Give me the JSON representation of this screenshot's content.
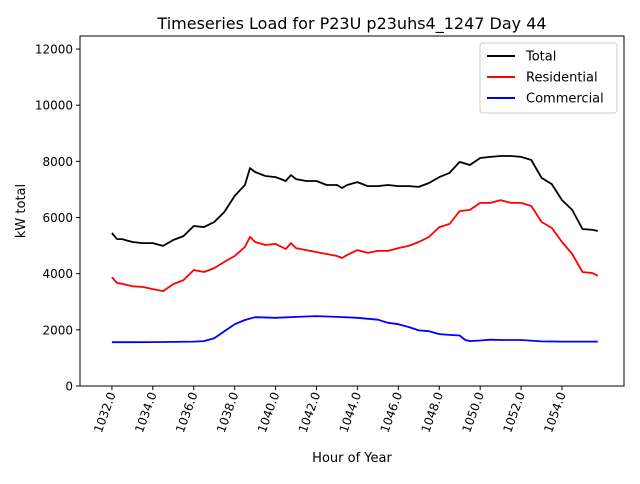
{
  "chart_data": {
    "type": "line",
    "title": "Timeseries Load for P23U p23uhs4_1247  Day 44",
    "xlabel": "Hour of Year",
    "ylabel": "kW total",
    "xlim": [
      1030.44,
      1057.03
    ],
    "ylim": [
      0,
      12465
    ],
    "xticks": [
      1032,
      1034,
      1036,
      1038,
      1040,
      1042,
      1044,
      1046,
      1048,
      1050,
      1052,
      1054
    ],
    "xtick_labels": [
      "1032.0",
      "1034.0",
      "1036.0",
      "1038.0",
      "1040.0",
      "1042.0",
      "1044.0",
      "1046.0",
      "1048.0",
      "1050.0",
      "1052.0",
      "1054.0"
    ],
    "yticks": [
      0,
      2000,
      4000,
      6000,
      8000,
      10000,
      12000
    ],
    "ytick_labels": [
      "0",
      "2000",
      "4000",
      "6000",
      "8000",
      "10000",
      "12000"
    ],
    "grid": false,
    "legend_position": "top-right",
    "series": [
      {
        "name": "Total",
        "color": "#000000",
        "x": [
          1032,
          1032.25,
          1032.5,
          1033,
          1033.5,
          1034,
          1034.5,
          1035,
          1035.5,
          1036,
          1036.5,
          1037,
          1037.5,
          1038,
          1038.5,
          1038.75,
          1039,
          1039.5,
          1040,
          1040.5,
          1040.75,
          1041,
          1041.5,
          1042,
          1042.5,
          1043,
          1043.25,
          1043.5,
          1044,
          1044.5,
          1045,
          1045.5,
          1046,
          1046.5,
          1047,
          1047.5,
          1048,
          1048.5,
          1049,
          1049.5,
          1050,
          1050.5,
          1051,
          1051.5,
          1052,
          1052.5,
          1053,
          1053.5,
          1054,
          1054.5,
          1055,
          1055.5,
          1055.75
        ],
        "y": [
          5450,
          5230,
          5230,
          5130,
          5090,
          5090,
          4990,
          5200,
          5340,
          5700,
          5660,
          5840,
          6200,
          6770,
          7160,
          7760,
          7620,
          7480,
          7440,
          7300,
          7510,
          7370,
          7300,
          7300,
          7160,
          7160,
          7050,
          7160,
          7260,
          7120,
          7120,
          7160,
          7120,
          7120,
          7090,
          7230,
          7440,
          7590,
          7980,
          7870,
          8120,
          8160,
          8190,
          8190,
          8160,
          8050,
          7410,
          7190,
          6620,
          6270,
          5590,
          5560,
          5520
        ]
      },
      {
        "name": "Residential",
        "color": "#ff0000",
        "x": [
          1032,
          1032.25,
          1032.5,
          1033,
          1033.5,
          1034,
          1034.5,
          1035,
          1035.5,
          1036,
          1036.5,
          1037,
          1037.5,
          1038,
          1038.5,
          1038.75,
          1039,
          1039.5,
          1040,
          1040.5,
          1040.75,
          1041,
          1041.5,
          1042,
          1042.5,
          1043,
          1043.25,
          1043.5,
          1044,
          1044.5,
          1045,
          1045.5,
          1046,
          1046.5,
          1047,
          1047.5,
          1048,
          1048.5,
          1049,
          1049.5,
          1050,
          1050.5,
          1051,
          1051.5,
          1052,
          1052.5,
          1053,
          1053.5,
          1054,
          1054.5,
          1055,
          1055.5,
          1055.75
        ],
        "y": [
          3880,
          3670,
          3640,
          3550,
          3530,
          3450,
          3380,
          3630,
          3770,
          4130,
          4060,
          4200,
          4420,
          4630,
          4950,
          5310,
          5130,
          5020,
          5060,
          4880,
          5090,
          4910,
          4840,
          4770,
          4700,
          4630,
          4560,
          4670,
          4840,
          4740,
          4810,
          4810,
          4910,
          4990,
          5130,
          5310,
          5660,
          5770,
          6230,
          6270,
          6520,
          6520,
          6620,
          6520,
          6520,
          6410,
          5840,
          5630,
          5130,
          4700,
          4060,
          4020,
          3920
        ]
      },
      {
        "name": "Commercial",
        "color": "#0000ff",
        "x": [
          1032,
          1033,
          1034,
          1035,
          1036,
          1036.5,
          1037,
          1037.5,
          1038,
          1038.5,
          1039,
          1040,
          1041,
          1042,
          1043,
          1044,
          1045,
          1045.5,
          1046,
          1046.5,
          1047,
          1047.5,
          1048,
          1048.5,
          1049,
          1049.25,
          1049.5,
          1050,
          1050.5,
          1051,
          1052,
          1053,
          1054,
          1055,
          1055.75
        ],
        "y": [
          1560,
          1560,
          1565,
          1570,
          1580,
          1600,
          1700,
          1950,
          2200,
          2350,
          2450,
          2430,
          2460,
          2490,
          2460,
          2430,
          2360,
          2250,
          2200,
          2100,
          1980,
          1950,
          1850,
          1820,
          1800,
          1650,
          1600,
          1620,
          1650,
          1640,
          1640,
          1590,
          1580,
          1580,
          1580
        ]
      }
    ]
  }
}
